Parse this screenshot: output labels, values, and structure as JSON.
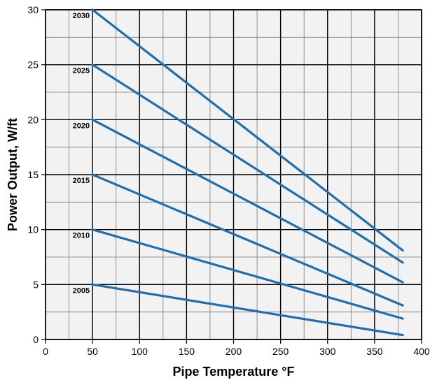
{
  "chart_data": {
    "type": "line",
    "title": "",
    "xlabel": "Pipe Temperature °F",
    "ylabel": "Power Output, W/ft",
    "xlim": [
      0,
      400
    ],
    "ylim": [
      0,
      30
    ],
    "xticks": [
      0,
      50,
      100,
      150,
      200,
      250,
      300,
      350,
      400
    ],
    "yticks": [
      0,
      5,
      10,
      15,
      20,
      25,
      30
    ],
    "grid": true,
    "background_color": "#f2f2f2",
    "line_color": "#1f6fae",
    "series": [
      {
        "name": "2005",
        "x": [
          50,
          380
        ],
        "y": [
          5,
          0.4
        ]
      },
      {
        "name": "2010",
        "x": [
          50,
          380
        ],
        "y": [
          10,
          1.9
        ]
      },
      {
        "name": "2015",
        "x": [
          50,
          380
        ],
        "y": [
          15,
          3.1
        ]
      },
      {
        "name": "2020",
        "x": [
          50,
          380
        ],
        "y": [
          20,
          5.2
        ]
      },
      {
        "name": "2025",
        "x": [
          50,
          380
        ],
        "y": [
          25,
          7.0
        ]
      },
      {
        "name": "2030",
        "x": [
          50,
          380
        ],
        "y": [
          30,
          8.1
        ]
      }
    ]
  }
}
